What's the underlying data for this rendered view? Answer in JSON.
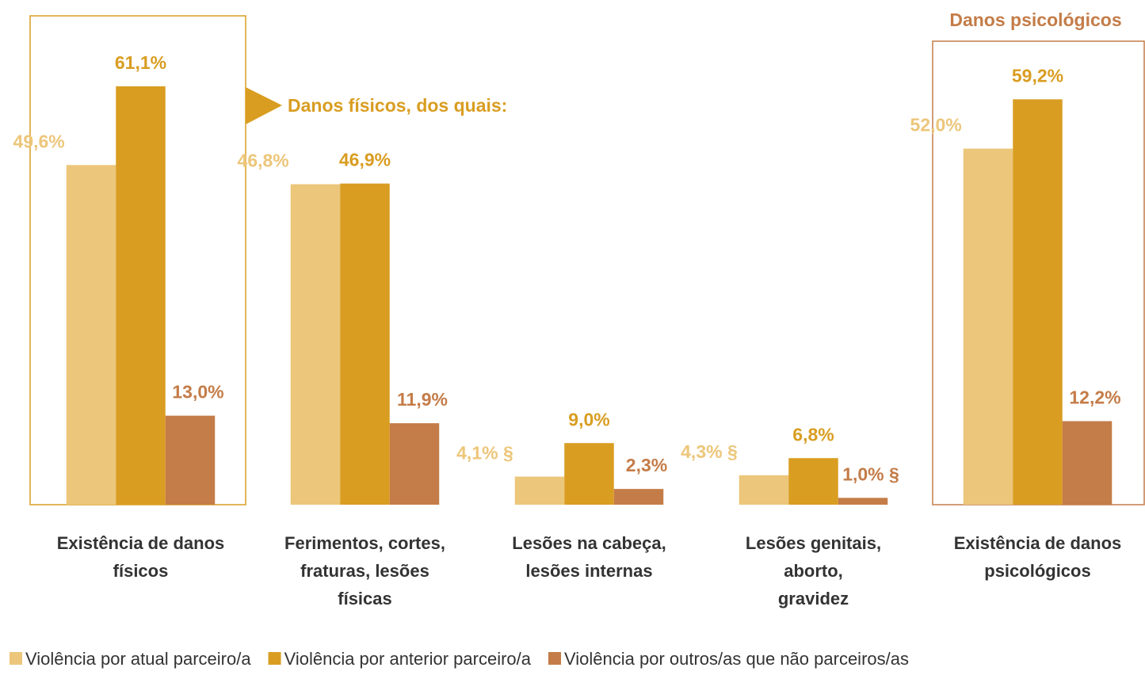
{
  "chart_data": {
    "type": "bar",
    "categories": [
      [
        "Existência de danos",
        "físicos"
      ],
      [
        "Ferimentos, cortes,",
        "fraturas, lesões",
        "físicas"
      ],
      [
        "Lesões na cabeça,",
        "lesões internas"
      ],
      [
        "Lesões genitais,",
        "aborto,",
        "gravidez"
      ],
      [
        "Existência de danos",
        "psicológicos"
      ]
    ],
    "series": [
      {
        "name": "Violência por atual parceiro/a",
        "color": "#ecc67a",
        "values": [
          49.6,
          46.8,
          4.1,
          4.3,
          52.0
        ],
        "value_labels": [
          "49,6%",
          "46,8%",
          "4,1% §",
          "4,3% §",
          "52,0%"
        ]
      },
      {
        "name": "Violência por anterior parceiro/a",
        "color": "#d99d21",
        "values": [
          61.1,
          46.9,
          9.0,
          6.8,
          59.2
        ],
        "value_labels": [
          "61,1%",
          "46,9%",
          "9,0%",
          "6,8%",
          "59,2%"
        ]
      },
      {
        "name": "Violência por outros/as que não parceiros/as",
        "color": "#c47c48",
        "values": [
          13.0,
          11.9,
          2.3,
          1.0,
          12.2
        ],
        "value_labels": [
          "13,0%",
          "11,9%",
          "2,3%",
          "1,0% §",
          "12,2%"
        ]
      }
    ],
    "annotations": [
      "Danos físicos, dos quais:",
      "Danos psicológicos"
    ],
    "ylim": [
      0,
      70
    ],
    "legend": "bottom"
  }
}
